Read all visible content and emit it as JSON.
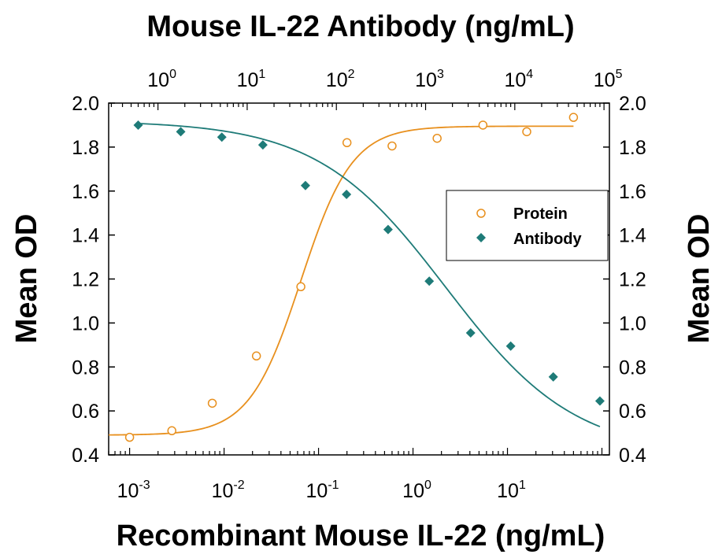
{
  "chart_data": {
    "type": "scatter",
    "top_title": "Mouse IL-22 Antibody (ng/mL)",
    "xlabel": "Recombinant Mouse IL-22 (ng/mL)",
    "ylabel_left": "Mean OD",
    "ylabel_right": "Mean OD",
    "ylim": [
      0.4,
      2.0
    ],
    "yticks": [
      "0.4",
      "0.6",
      "0.8",
      "1.0",
      "1.2",
      "1.4",
      "1.6",
      "1.8",
      "2.0"
    ],
    "x_bottom": {
      "scale": "log",
      "range": [
        0.0006,
        120
      ],
      "ticks": [
        {
          "value": 0.001,
          "base": "10",
          "exp": "-3"
        },
        {
          "value": 0.01,
          "base": "10",
          "exp": "-2"
        },
        {
          "value": 0.1,
          "base": "10",
          "exp": "-1"
        },
        {
          "value": 1,
          "base": "10",
          "exp": "0"
        },
        {
          "value": 10,
          "base": "10",
          "exp": "1"
        }
      ]
    },
    "x_top": {
      "scale": "log",
      "range": [
        0.28,
        115000
      ],
      "ticks": [
        {
          "value": 1,
          "base": "10",
          "exp": "0"
        },
        {
          "value": 10,
          "base": "10",
          "exp": "1"
        },
        {
          "value": 100,
          "base": "10",
          "exp": "2"
        },
        {
          "value": 1000,
          "base": "10",
          "exp": "3"
        },
        {
          "value": 10000,
          "base": "10",
          "exp": "4"
        },
        {
          "value": 100000,
          "base": "10",
          "exp": "5"
        }
      ]
    },
    "legend_position": "right",
    "series": [
      {
        "name": "Protein",
        "axis": "bottom",
        "marker": "open-circle",
        "color": "#E8901E",
        "x": [
          0.001,
          0.0028,
          0.0075,
          0.022,
          0.065,
          0.2,
          0.6,
          1.8,
          5.5,
          16,
          50
        ],
        "y": [
          0.48,
          0.51,
          0.635,
          0.85,
          1.165,
          1.82,
          1.805,
          1.84,
          1.9,
          1.87,
          1.935
        ],
        "fit": {
          "bottom": 0.49,
          "top": 1.895,
          "ec50": 0.065,
          "hill": 1.6
        }
      },
      {
        "name": "Antibody",
        "axis": "top",
        "marker": "filled-diamond",
        "color": "#1E7B78",
        "x": [
          0.6,
          1.8,
          5.2,
          15,
          45,
          130,
          380,
          1100,
          3200,
          9000,
          27000,
          90000
        ],
        "y": [
          1.9,
          1.87,
          1.845,
          1.81,
          1.625,
          1.585,
          1.425,
          1.19,
          0.955,
          0.895,
          0.755,
          0.645
        ],
        "fit": {
          "bottom": 0.4,
          "top": 1.92,
          "ec50": 1700,
          "hill": 0.6
        }
      }
    ]
  }
}
